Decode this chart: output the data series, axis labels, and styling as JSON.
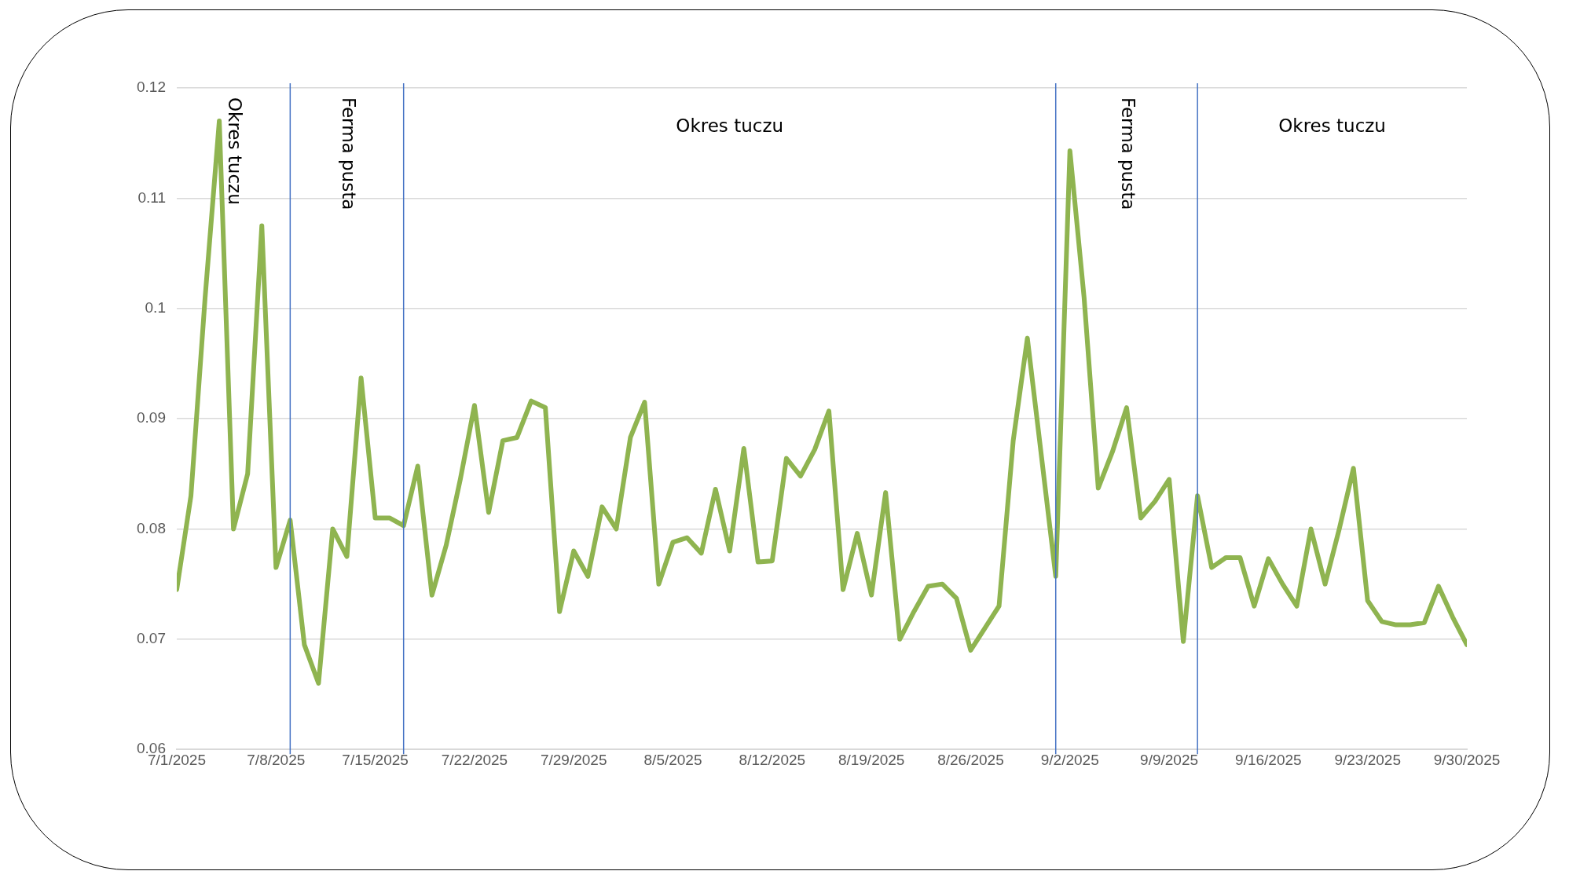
{
  "chart_data": {
    "type": "line",
    "color": "#8fb450",
    "grid": "y",
    "legend": false,
    "marker": "none",
    "x": [
      "2025-07-01",
      "2025-07-02",
      "2025-07-03",
      "2025-07-04",
      "2025-07-05",
      "2025-07-06",
      "2025-07-07",
      "2025-07-08",
      "2025-07-09",
      "2025-07-10",
      "2025-07-11",
      "2025-07-12",
      "2025-07-13",
      "2025-07-14",
      "2025-07-15",
      "2025-07-16",
      "2025-07-17",
      "2025-07-18",
      "2025-07-19",
      "2025-07-20",
      "2025-07-21",
      "2025-07-22",
      "2025-07-23",
      "2025-07-24",
      "2025-07-25",
      "2025-07-26",
      "2025-07-27",
      "2025-07-28",
      "2025-07-29",
      "2025-07-30",
      "2025-07-31",
      "2025-08-01",
      "2025-08-02",
      "2025-08-03",
      "2025-08-04",
      "2025-08-05",
      "2025-08-06",
      "2025-08-07",
      "2025-08-08",
      "2025-08-09",
      "2025-08-10",
      "2025-08-11",
      "2025-08-12",
      "2025-08-13",
      "2025-08-14",
      "2025-08-15",
      "2025-08-16",
      "2025-08-17",
      "2025-08-18",
      "2025-08-19",
      "2025-08-20",
      "2025-08-21",
      "2025-08-22",
      "2025-08-23",
      "2025-08-24",
      "2025-08-25",
      "2025-08-26",
      "2025-08-27",
      "2025-08-28",
      "2025-08-29",
      "2025-08-30",
      "2025-08-31",
      "2025-09-01",
      "2025-09-02",
      "2025-09-03",
      "2025-09-04",
      "2025-09-05",
      "2025-09-06",
      "2025-09-07",
      "2025-09-08",
      "2025-09-09",
      "2025-09-10",
      "2025-09-11",
      "2025-09-12",
      "2025-09-13",
      "2025-09-14",
      "2025-09-15",
      "2025-09-16",
      "2025-09-17",
      "2025-09-18",
      "2025-09-19",
      "2025-09-20",
      "2025-09-21",
      "2025-09-22",
      "2025-09-23",
      "2025-09-24",
      "2025-09-25",
      "2025-09-26",
      "2025-09-27",
      "2025-09-28",
      "2025-09-29",
      "2025-09-30"
    ],
    "values": [
      0.0745,
      0.083,
      0.101,
      0.117,
      0.08,
      0.085,
      0.1075,
      0.0765,
      0.0808,
      0.0695,
      0.066,
      0.08,
      0.0775,
      0.0937,
      0.081,
      0.081,
      0.0803,
      0.0857,
      0.074,
      0.0785,
      0.0845,
      0.0912,
      0.0815,
      0.088,
      0.0883,
      0.0916,
      0.091,
      0.0725,
      0.078,
      0.0757,
      0.082,
      0.08,
      0.0883,
      0.0915,
      0.075,
      0.0788,
      0.0792,
      0.0778,
      0.0836,
      0.078,
      0.0873,
      0.077,
      0.0771,
      0.0864,
      0.0848,
      0.0872,
      0.0907,
      0.0745,
      0.0796,
      0.074,
      0.0833,
      0.07,
      0.0725,
      0.0748,
      0.075,
      0.0737,
      0.069,
      0.071,
      0.073,
      0.088,
      0.0973,
      0.0865,
      0.0757,
      0.1143,
      0.101,
      0.0837,
      0.087,
      0.091,
      0.081,
      0.0825,
      0.0845,
      0.0698,
      0.083,
      0.0765,
      0.0774,
      0.0774,
      0.073,
      0.0773,
      0.075,
      0.073,
      0.08,
      0.075,
      0.08,
      0.0855,
      0.0735,
      0.0716,
      0.0713,
      0.0713,
      0.0715,
      0.0748,
      0.072,
      0.0695
    ],
    "xlim": [
      "2025-07-01",
      "2025-09-30"
    ],
    "xticks": [
      {
        "value": "2025-07-01",
        "label": "7/1/2025"
      },
      {
        "value": "2025-07-08",
        "label": "7/8/2025"
      },
      {
        "value": "2025-07-15",
        "label": "7/15/2025"
      },
      {
        "value": "2025-07-22",
        "label": "7/22/2025"
      },
      {
        "value": "2025-07-29",
        "label": "7/29/2025"
      },
      {
        "value": "2025-08-05",
        "label": "8/5/2025"
      },
      {
        "value": "2025-08-12",
        "label": "8/12/2025"
      },
      {
        "value": "2025-08-19",
        "label": "8/19/2025"
      },
      {
        "value": "2025-08-26",
        "label": "8/26/2025"
      },
      {
        "value": "2025-09-02",
        "label": "9/2/2025"
      },
      {
        "value": "2025-09-09",
        "label": "9/9/2025"
      },
      {
        "value": "2025-09-16",
        "label": "9/16/2025"
      },
      {
        "value": "2025-09-23",
        "label": "9/23/2025"
      },
      {
        "value": "2025-09-30",
        "label": "9/30/2025"
      }
    ],
    "ylim": [
      0.06,
      0.12
    ],
    "yticks": [
      0.06,
      0.07,
      0.08,
      0.09,
      0.1,
      0.11,
      0.12
    ],
    "ref_lines": [
      {
        "axis": "x",
        "value": "2025-07-09",
        "color": "#4472c4"
      },
      {
        "axis": "x",
        "value": "2025-07-17",
        "color": "#4472c4"
      },
      {
        "axis": "x",
        "value": "2025-09-01",
        "color": "#4472c4"
      },
      {
        "axis": "x",
        "value": "2025-09-11",
        "color": "#4472c4"
      }
    ],
    "annotations": [
      "Okres tuczu",
      "Ferma pusta",
      "Okres tuczu",
      "Ferma pusta",
      "Okres tuczu"
    ]
  }
}
